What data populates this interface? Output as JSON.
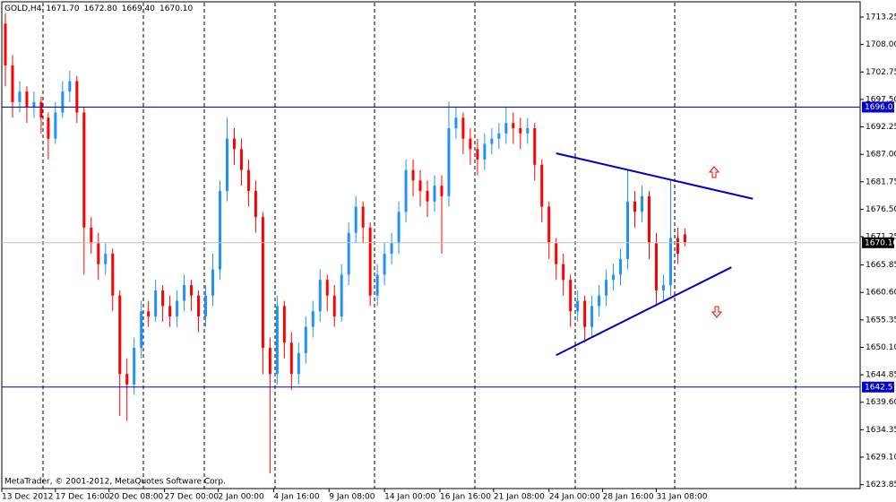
{
  "chart_data": {
    "type": "candlestick",
    "symbol": "GOLD,H4",
    "header_values": [
      "1671.70",
      "1672.80",
      "1669.40",
      "1670.10"
    ],
    "footer": "MetaTrader, © 2001-2012, MetaQuotes Software Corp.",
    "up_color": "#1e90ff",
    "down_color": "#ff0000",
    "open": [
      1712,
      1704,
      1697,
      1699,
      1696,
      1697,
      1694,
      1690,
      1695,
      1699,
      1701,
      1695,
      1673,
      1670,
      1666,
      1668,
      1660,
      1645,
      1643,
      1650,
      1657,
      1656,
      1661,
      1658,
      1656,
      1659,
      1662,
      1660,
      1656,
      1660,
      1665,
      1680,
      1690,
      1688,
      1684,
      1680,
      1675,
      1650,
      1645,
      1658,
      1651,
      1645,
      1649,
      1654,
      1657,
      1663,
      1660,
      1656,
      1664,
      1672,
      1677,
      1673,
      1660,
      1664,
      1668,
      1670,
      1676,
      1684,
      1682,
      1680,
      1678,
      1681,
      1679,
      1692,
      1694,
      1690,
      1688,
      1686,
      1689,
      1690,
      1691,
      1693,
      1692,
      1691,
      1692,
      1685,
      1677,
      1670,
      1666,
      1663,
      1657,
      1659,
      1654,
      1658,
      1660,
      1663,
      1664,
      1667,
      1678,
      1676,
      1679,
      1670,
      1661,
      1662,
      1671,
      1671.7
    ],
    "high": [
      1714,
      1706,
      1701,
      1700,
      1699,
      1698,
      1695,
      1697,
      1701,
      1703,
      1702,
      1696,
      1675,
      1672,
      1670,
      1669,
      1661,
      1648,
      1652,
      1659,
      1659,
      1663,
      1662,
      1660,
      1661,
      1664,
      1663,
      1661,
      1662,
      1668,
      1682,
      1694,
      1692,
      1690,
      1686,
      1682,
      1676,
      1652,
      1660,
      1659,
      1653,
      1651,
      1656,
      1659,
      1665,
      1664,
      1662,
      1666,
      1674,
      1679,
      1678,
      1674,
      1666,
      1670,
      1672,
      1678,
      1686,
      1686,
      1684,
      1682,
      1683,
      1683,
      1697,
      1696,
      1695,
      1692,
      1690,
      1691,
      1692,
      1693,
      1696,
      1695,
      1694,
      1694,
      1693,
      1686,
      1678,
      1671,
      1668,
      1664,
      1661,
      1660,
      1660,
      1662,
      1665,
      1666,
      1669,
      1684,
      1680,
      1681,
      1680,
      1672,
      1664,
      1682,
      1673,
      1672.8
    ],
    "low": [
      1700,
      1694,
      1695,
      1693,
      1694,
      1691,
      1686,
      1689,
      1694,
      1697,
      1693,
      1664,
      1668,
      1663,
      1664,
      1657,
      1637,
      1636,
      1641,
      1648,
      1654,
      1655,
      1655,
      1654,
      1654,
      1657,
      1657,
      1653,
      1654,
      1658,
      1663,
      1678,
      1685,
      1681,
      1677,
      1672,
      1645,
      1626,
      1643,
      1648,
      1642,
      1643,
      1647,
      1652,
      1655,
      1657,
      1654,
      1655,
      1662,
      1670,
      1670,
      1658,
      1658,
      1662,
      1666,
      1668,
      1674,
      1679,
      1677,
      1675,
      1676,
      1668,
      1677,
      1690,
      1687,
      1685,
      1683,
      1684,
      1687,
      1688,
      1689,
      1689,
      1688,
      1689,
      1682,
      1674,
      1667,
      1663,
      1660,
      1654,
      1655,
      1651,
      1652,
      1656,
      1658,
      1661,
      1662,
      1665,
      1673,
      1674,
      1667,
      1658,
      1659,
      1660,
      1666,
      1669.4
    ],
    "close": [
      1704,
      1697,
      1699,
      1696,
      1697,
      1694,
      1690,
      1695,
      1699,
      1701,
      1695,
      1673,
      1670,
      1666,
      1668,
      1660,
      1645,
      1643,
      1650,
      1657,
      1656,
      1661,
      1658,
      1656,
      1659,
      1662,
      1660,
      1656,
      1660,
      1665,
      1680,
      1690,
      1688,
      1684,
      1680,
      1675,
      1650,
      1645,
      1658,
      1651,
      1645,
      1649,
      1654,
      1657,
      1663,
      1660,
      1656,
      1664,
      1672,
      1677,
      1673,
      1660,
      1664,
      1668,
      1670,
      1676,
      1684,
      1682,
      1680,
      1678,
      1681,
      1679,
      1692,
      1694,
      1690,
      1688,
      1686,
      1689,
      1690,
      1691,
      1693,
      1692,
      1691,
      1692,
      1685,
      1677,
      1670,
      1666,
      1663,
      1657,
      1659,
      1654,
      1658,
      1660,
      1663,
      1664,
      1667,
      1678,
      1676,
      1679,
      1670,
      1661,
      1662,
      1671,
      1668,
      1670.1
    ],
    "xlim": [
      0,
      120
    ],
    "xticks": [
      {
        "value": 0,
        "label": "13 Dec 2012"
      },
      {
        "value": 7.5,
        "label": "17 Dec 16:00"
      },
      {
        "value": 15,
        "label": "20 Dec 08:00"
      },
      {
        "value": 22.75,
        "label": "27 Dec 00:00"
      },
      {
        "value": 30.25,
        "label": "2 Jan 00:00"
      },
      {
        "value": 38,
        "label": "4 Jan 16:00"
      },
      {
        "value": 45.75,
        "label": "9 Jan 08:00"
      },
      {
        "value": 53.5,
        "label": "14 Jan 00:00"
      },
      {
        "value": 61.25,
        "label": "16 Jan 16:00"
      },
      {
        "value": 68.75,
        "label": "21 Jan 08:00"
      },
      {
        "value": 76.5,
        "label": "24 Jan 00:00"
      },
      {
        "value": 84,
        "label": "28 Jan 16:00"
      },
      {
        "value": 91.5,
        "label": "31 Jan 08:00"
      }
    ],
    "ylim": [
      1623.1,
      1716.51
    ],
    "yticks": [
      1713.25,
      {
        "value": 1708,
        "label": "1708.00"
      },
      {
        "value": 1702.75,
        "label": "1702.75"
      },
      {
        "value": 1697.5,
        "label": "1697.50"
      },
      1692.25,
      {
        "value": 1687,
        "label": "1687.00"
      },
      1681.75,
      {
        "value": 1676.5,
        "label": "1676.50"
      },
      1671.25,
      1665.85,
      {
        "value": 1660.6,
        "label": "1660.60"
      },
      1655.35,
      {
        "value": 1650.1,
        "label": "1650.10"
      },
      1644.85,
      {
        "value": 1639.6,
        "label": "1639.60"
      },
      1634.35,
      {
        "value": 1629.1,
        "label": "1629.10"
      },
      1623.85
    ],
    "hlines": [
      {
        "value": 1696.03,
        "label": "1696.03",
        "color": "#0000cd"
      },
      {
        "value": 1642.51,
        "label": "1642.51",
        "color": "#0000cd"
      },
      {
        "value": 1670.1,
        "label": "1670.10",
        "color": "#c0c0c0"
      }
    ],
    "trendlines": [
      {
        "x": [
          77.5,
          105
        ],
        "y": [
          1687.2,
          1678.5
        ],
        "color": "#0000cd"
      },
      {
        "x": [
          77.5,
          102
        ],
        "y": [
          1648.6,
          1665.4
        ],
        "color": "#0000cd"
      }
    ]
  }
}
